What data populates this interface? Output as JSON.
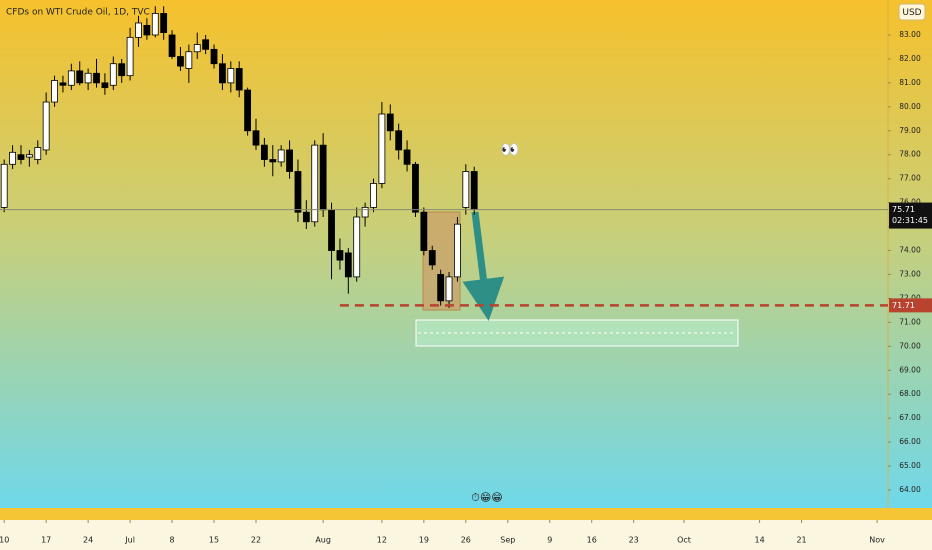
{
  "chart_data": {
    "type": "candlestick",
    "title": "CFDs on WTI Crude Oil, 1D, TVC",
    "currency": "USD",
    "x": [
      0,
      1,
      2,
      3,
      4,
      5,
      6,
      7,
      8,
      9,
      10,
      11,
      12,
      13,
      14,
      15,
      16,
      17,
      18,
      19,
      20,
      21,
      22,
      23,
      24,
      25,
      26,
      27,
      28,
      29,
      30,
      31,
      32,
      33,
      34,
      35,
      36,
      37,
      38,
      39,
      40,
      41,
      42,
      43,
      44,
      45,
      46,
      47,
      48,
      49,
      50,
      51,
      52,
      53,
      54,
      55,
      56
    ],
    "open": [
      75.8,
      77.6,
      78.0,
      77.9,
      77.8,
      78.2,
      80.2,
      81.0,
      80.9,
      81.5,
      81.0,
      81.4,
      81.0,
      80.9,
      81.8,
      81.3,
      82.9,
      83.4,
      83.0,
      83.9,
      83.0,
      82.1,
      81.6,
      82.3,
      82.8,
      82.4,
      81.8,
      81.0,
      81.6,
      80.7,
      79.0,
      78.4,
      77.8,
      77.7,
      78.2,
      77.3,
      75.6,
      75.2,
      78.4,
      75.7,
      74.0,
      73.9,
      72.9,
      75.4,
      75.8,
      76.8,
      79.7,
      79.0,
      78.2,
      77.6,
      75.6,
      74.0,
      73.0,
      71.9,
      72.9,
      75.8,
      77.3
    ],
    "high": [
      77.8,
      78.4,
      78.4,
      78.2,
      78.6,
      80.6,
      81.3,
      81.3,
      81.8,
      81.9,
      81.6,
      82.0,
      81.4,
      82.1,
      82.0,
      83.3,
      83.8,
      83.7,
      84.2,
      84.2,
      83.2,
      82.5,
      82.6,
      83.1,
      83.0,
      82.6,
      82.2,
      81.9,
      81.9,
      80.8,
      79.5,
      78.7,
      78.4,
      78.4,
      78.6,
      77.8,
      76.1,
      78.6,
      78.9,
      76.0,
      74.5,
      74.1,
      75.8,
      76.0,
      77.0,
      80.2,
      80.1,
      79.3,
      78.6,
      77.7,
      75.8,
      74.2,
      73.2,
      73.1,
      75.4,
      77.6,
      77.5
    ],
    "low": [
      75.6,
      77.4,
      77.6,
      77.5,
      77.6,
      78.0,
      80.0,
      80.6,
      80.7,
      80.9,
      80.7,
      80.8,
      80.5,
      80.7,
      81.0,
      81.1,
      82.5,
      82.8,
      82.9,
      82.8,
      82.0,
      81.5,
      81.0,
      82.0,
      82.2,
      81.6,
      80.7,
      80.6,
      80.4,
      78.8,
      78.2,
      77.5,
      77.1,
      77.5,
      77.0,
      75.2,
      74.9,
      75.0,
      75.4,
      72.8,
      73.2,
      72.2,
      72.7,
      75.0,
      75.6,
      76.6,
      78.6,
      77.8,
      77.3,
      75.4,
      73.8,
      73.2,
      71.7,
      71.6,
      72.7,
      75.5,
      75.5
    ],
    "close": [
      77.6,
      78.1,
      77.8,
      78.0,
      78.3,
      80.2,
      81.1,
      80.9,
      81.5,
      81.0,
      81.4,
      81.0,
      80.8,
      81.8,
      81.3,
      82.9,
      83.5,
      83.0,
      83.9,
      83.1,
      82.1,
      81.7,
      82.3,
      82.6,
      82.4,
      81.8,
      81.0,
      81.6,
      80.7,
      79.0,
      78.4,
      77.8,
      77.7,
      78.2,
      77.3,
      75.6,
      75.2,
      78.4,
      75.7,
      74.0,
      73.6,
      72.9,
      75.4,
      75.8,
      76.8,
      79.7,
      79.0,
      78.2,
      77.6,
      75.6,
      74.0,
      73.4,
      71.9,
      72.9,
      75.1,
      77.3,
      75.71
    ],
    "ylim": [
      63.25,
      84.46
    ],
    "yticks": [
      {
        "value": 64,
        "label": "64.00"
      },
      {
        "value": 65,
        "label": "65.00"
      },
      {
        "value": 66,
        "label": "66.00"
      },
      {
        "value": 67,
        "label": "67.00"
      },
      {
        "value": 68,
        "label": "68.00"
      },
      {
        "value": 69,
        "label": "69.00"
      },
      {
        "value": 70,
        "label": "70.00"
      },
      {
        "value": 71,
        "label": "71.00"
      },
      {
        "value": 72,
        "label": "72.00"
      },
      {
        "value": 73,
        "label": "73.00"
      },
      {
        "value": 74,
        "label": "74.00"
      },
      {
        "value": 75,
        "label": "75.00"
      },
      {
        "value": 76,
        "label": "76.00"
      },
      {
        "value": 77,
        "label": "77.00"
      },
      {
        "value": 78,
        "label": "78.00"
      },
      {
        "value": 79,
        "label": "79.00"
      },
      {
        "value": 80,
        "label": "80.00"
      },
      {
        "value": 81,
        "label": "81.00"
      },
      {
        "value": 82,
        "label": "82.00"
      },
      {
        "value": 83,
        "label": "83.00"
      }
    ],
    "xlim": [
      -0.5,
      105.3
    ],
    "xticks": [
      {
        "value": 0,
        "label": "10"
      },
      {
        "value": 5,
        "label": "17"
      },
      {
        "value": 10,
        "label": "24"
      },
      {
        "value": 15,
        "label": "Jul"
      },
      {
        "value": 20,
        "label": "8"
      },
      {
        "value": 25,
        "label": "15"
      },
      {
        "value": 30,
        "label": "22"
      },
      {
        "value": 38,
        "label": "Aug"
      },
      {
        "value": 45,
        "label": "12"
      },
      {
        "value": 50,
        "label": "19"
      },
      {
        "value": 55,
        "label": "26"
      },
      {
        "value": 60,
        "label": "Sep"
      },
      {
        "value": 65,
        "label": "9"
      },
      {
        "value": 70,
        "label": "16"
      },
      {
        "value": 75,
        "label": "23"
      },
      {
        "value": 81,
        "label": "Oct"
      },
      {
        "value": 90,
        "label": "14"
      },
      {
        "value": 95,
        "label": "21"
      },
      {
        "value": 104,
        "label": "Nov"
      }
    ],
    "up_color": "#ffffff",
    "down_color": "#000000",
    "price_line": {
      "value": 75.71,
      "countdown": "02:31:45"
    },
    "level": {
      "value": 71.71,
      "color": "#b8432f"
    },
    "annotations": [
      "👀",
      "⏱😁😁"
    ]
  }
}
